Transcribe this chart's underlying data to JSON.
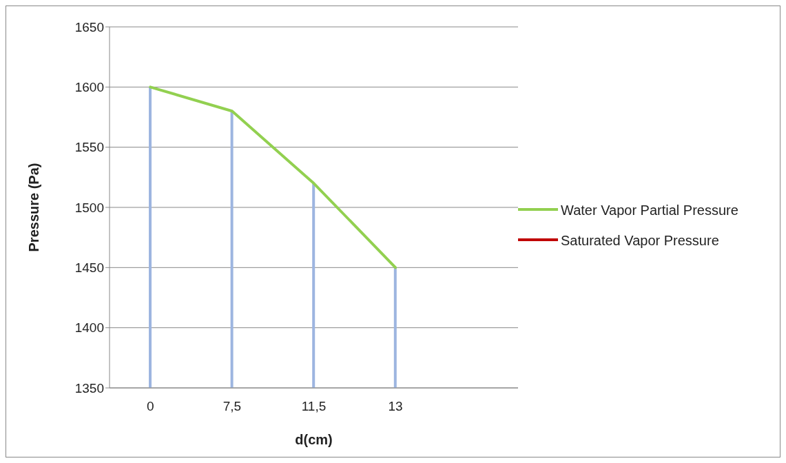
{
  "chart_data": {
    "type": "line",
    "xlabel": "d(cm)",
    "ylabel": "Pressure (Pa)",
    "categories": [
      "0",
      "7,5",
      "11,5",
      "13",
      null
    ],
    "series": [
      {
        "type": "bar",
        "color": "#9db5e0",
        "values": [
          1600,
          1580,
          1520,
          1450,
          null
        ]
      },
      {
        "name": "Water Vapor Partial Pressure",
        "color": "#92d050",
        "values": [
          1600,
          1580,
          1520,
          1450,
          null
        ]
      },
      {
        "name": "Saturated Vapor Pressure",
        "color": "#c00000",
        "values": [
          null,
          null,
          null,
          null,
          null
        ]
      }
    ],
    "ylim": [
      1350,
      1650
    ],
    "yticks": [
      1350,
      1400,
      1450,
      1500,
      1550,
      1600,
      1650
    ],
    "grid": "y",
    "legend": "right",
    "marker": "none",
    "line_style": "solid"
  }
}
